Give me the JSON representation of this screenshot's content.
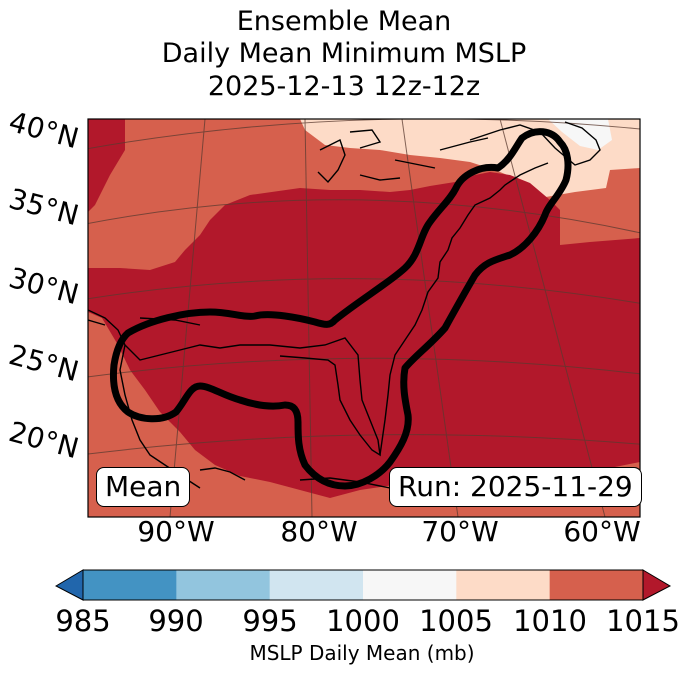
{
  "title": {
    "line1": "Ensemble Mean",
    "line2": "Daily Mean Minimum MSLP",
    "line3": "2025-12-13 12z-12z"
  },
  "map": {
    "lat_labels": [
      "40°N",
      "35°N",
      "30°N",
      "25°N",
      "20°N"
    ],
    "lon_labels": [
      "90°W",
      "80°W",
      "70°W",
      "60°W"
    ],
    "left_box": "Mean",
    "right_box": "Run: 2025-11-29",
    "contour": "black outline of ensemble low-pressure track region along U.S. East Coast and Gulf of Mexico",
    "fill_colors": {
      "1005-1010": "#fddbc7",
      "1010-1015": "#d6604d",
      "above-1015": "#b2182b",
      "land-water-lines": "#000000"
    }
  },
  "colorbar": {
    "ticks": [
      "985",
      "990",
      "995",
      "1000",
      "1005",
      "1010",
      "1015"
    ],
    "colors": [
      "#2166ac",
      "#4393c3",
      "#92c5de",
      "#d1e5f0",
      "#f7f7f7",
      "#fddbc7",
      "#d6604d",
      "#b2182b"
    ],
    "label": "MSLP Daily Mean (mb)"
  }
}
